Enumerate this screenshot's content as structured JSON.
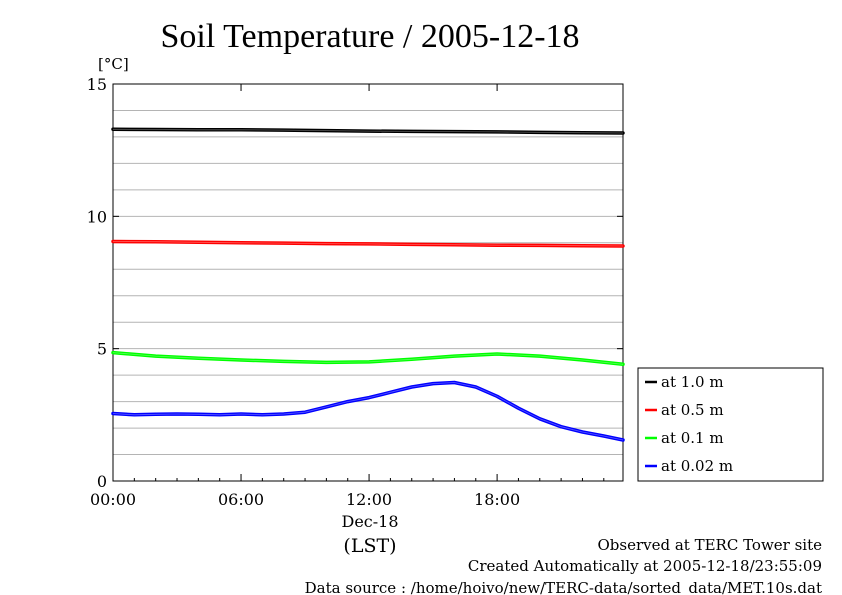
{
  "chart_data": {
    "type": "line",
    "title": "Soil Temperature / 2005-12-18",
    "ylabel": "[°C]",
    "xlabel": "(LST)",
    "date_label": "Dec-18",
    "ylim": [
      0,
      15
    ],
    "xlim": [
      0,
      23.9
    ],
    "yticks": [
      {
        "value": 0,
        "label": "0"
      },
      {
        "value": 5,
        "label": "5"
      },
      {
        "value": 10,
        "label": "10"
      },
      {
        "value": 15,
        "label": "15"
      }
    ],
    "xticks": [
      {
        "value": 0,
        "label": "00:00"
      },
      {
        "value": 6,
        "label": "06:00"
      },
      {
        "value": 12,
        "label": "12:00"
      },
      {
        "value": 18,
        "label": "18:00"
      }
    ],
    "grid": true,
    "legend_position": "right",
    "series": [
      {
        "name": "at 1.0 m",
        "color": "#000000",
        "x": [
          0,
          2,
          4,
          6,
          8,
          10,
          12,
          14,
          16,
          18,
          20,
          22,
          23.9
        ],
        "y": [
          13.29,
          13.28,
          13.27,
          13.27,
          13.26,
          13.24,
          13.22,
          13.21,
          13.2,
          13.19,
          13.17,
          13.16,
          13.15
        ]
      },
      {
        "name": "at 0.5 m",
        "color": "#ff0000",
        "x": [
          0,
          2,
          4,
          6,
          8,
          10,
          12,
          14,
          16,
          18,
          20,
          22,
          23.9
        ],
        "y": [
          9.05,
          9.04,
          9.02,
          9.0,
          8.99,
          8.97,
          8.96,
          8.94,
          8.93,
          8.91,
          8.9,
          8.89,
          8.88
        ]
      },
      {
        "name": "at 0.1 m",
        "color": "#00ff00",
        "x": [
          0,
          2,
          4,
          6,
          8,
          10,
          12,
          14,
          16,
          18,
          20,
          22,
          23.9
        ],
        "y": [
          4.85,
          4.72,
          4.64,
          4.57,
          4.52,
          4.48,
          4.5,
          4.6,
          4.72,
          4.8,
          4.72,
          4.57,
          4.41
        ]
      },
      {
        "name": "at 0.02 m",
        "color": "#0000ff",
        "x": [
          0,
          1,
          2,
          3,
          4,
          5,
          6,
          7,
          8,
          9,
          10,
          11,
          12,
          13,
          14,
          15,
          16,
          17,
          18,
          19,
          20,
          21,
          22,
          23,
          23.9
        ],
        "y": [
          2.55,
          2.5,
          2.52,
          2.53,
          2.52,
          2.5,
          2.53,
          2.5,
          2.53,
          2.6,
          2.8,
          3.0,
          3.15,
          3.35,
          3.55,
          3.68,
          3.72,
          3.55,
          3.2,
          2.75,
          2.35,
          2.05,
          1.85,
          1.7,
          1.55
        ]
      }
    ]
  },
  "footer": {
    "line1": "Observed at TERC Tower site",
    "line2": "Created Automatically at 2005-12-18/23:55:09",
    "line3": "Data source : /home/hoivo/new/TERC-data/sorted_data/MET.10s.dat"
  }
}
